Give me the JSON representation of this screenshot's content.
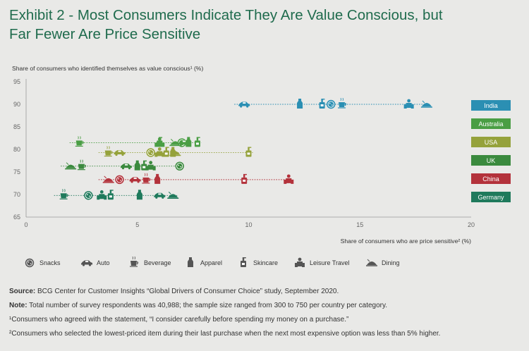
{
  "title_line1": "Exhibit 2 - Most Consumers Indicate They Are Value Conscious, but",
  "title_line2": "Far Fewer Are Price Sensitive",
  "chart_data": {
    "type": "scatter",
    "ylabel": "Share of consumers who identified themselves as value conscious¹ (%)",
    "xlabel": "Share of consumers who are price sensitive² (%)",
    "xlim": [
      0,
      20
    ],
    "ylim": [
      65,
      95
    ],
    "xticks": [
      0,
      5,
      10,
      15,
      20
    ],
    "yticks": [
      65,
      70,
      75,
      80,
      85,
      90,
      95
    ],
    "grid": false,
    "categories": [
      {
        "key": "snacks",
        "label": "Snacks",
        "icon": "snack-icon"
      },
      {
        "key": "auto",
        "label": "Auto",
        "icon": "car-icon"
      },
      {
        "key": "beverage",
        "label": "Beverage",
        "icon": "cup-icon"
      },
      {
        "key": "apparel",
        "label": "Apparel",
        "icon": "shirt-icon"
      },
      {
        "key": "skincare",
        "label": "Skincare",
        "icon": "bottle-icon"
      },
      {
        "key": "leisure",
        "label": "Leisure Travel",
        "icon": "traveler-icon"
      },
      {
        "key": "dining",
        "label": "Dining",
        "icon": "dining-icon"
      }
    ],
    "series": [
      {
        "name": "India",
        "color": "#2b8fb3",
        "y": 90,
        "points": [
          {
            "cat": "auto",
            "x": 9.8
          },
          {
            "cat": "apparel",
            "x": 12.3
          },
          {
            "cat": "skincare",
            "x": 13.3
          },
          {
            "cat": "snacks",
            "x": 13.7
          },
          {
            "cat": "beverage",
            "x": 14.2
          },
          {
            "cat": "leisure",
            "x": 17.2
          },
          {
            "cat": "dining",
            "x": 18.0
          }
        ]
      },
      {
        "name": "Australia",
        "color": "#4a9e44",
        "y": 81.5,
        "points": [
          {
            "cat": "beverage",
            "x": 2.4
          },
          {
            "cat": "skincare",
            "x": 6.0
          },
          {
            "cat": "leisure",
            "x": 6.0
          },
          {
            "cat": "dining",
            "x": 6.7
          },
          {
            "cat": "snacks",
            "x": 7.0
          },
          {
            "cat": "auto",
            "x": 7.1
          },
          {
            "cat": "apparel",
            "x": 7.3
          },
          {
            "cat": "skincare",
            "x": 7.7
          }
        ]
      },
      {
        "name": "USA",
        "color": "#95a23b",
        "y": 79.3,
        "points": [
          {
            "cat": "beverage",
            "x": 3.7
          },
          {
            "cat": "auto",
            "x": 4.2
          },
          {
            "cat": "snacks",
            "x": 5.6
          },
          {
            "cat": "leisure",
            "x": 6.0
          },
          {
            "cat": "skincare",
            "x": 6.3
          },
          {
            "cat": "apparel",
            "x": 6.6
          },
          {
            "cat": "dining",
            "x": 6.7
          },
          {
            "cat": "skincare",
            "x": 10.0
          }
        ]
      },
      {
        "name": "UK",
        "color": "#3b8a3e",
        "y": 76.3,
        "points": [
          {
            "cat": "dining",
            "x": 2.0
          },
          {
            "cat": "beverage",
            "x": 2.5
          },
          {
            "cat": "auto",
            "x": 4.5
          },
          {
            "cat": "apparel",
            "x": 5.0
          },
          {
            "cat": "skincare",
            "x": 5.3
          },
          {
            "cat": "leisure",
            "x": 5.6
          },
          {
            "cat": "snacks",
            "x": 6.9
          }
        ]
      },
      {
        "name": "China",
        "color": "#b3323b",
        "y": 73.3,
        "points": [
          {
            "cat": "dining",
            "x": 3.7
          },
          {
            "cat": "snacks",
            "x": 4.2
          },
          {
            "cat": "auto",
            "x": 4.9
          },
          {
            "cat": "beverage",
            "x": 5.4
          },
          {
            "cat": "apparel",
            "x": 5.9
          },
          {
            "cat": "skincare",
            "x": 9.8
          },
          {
            "cat": "leisure",
            "x": 11.8
          }
        ]
      },
      {
        "name": "Germany",
        "color": "#1f7a5c",
        "y": 69.8,
        "points": [
          {
            "cat": "beverage",
            "x": 1.7
          },
          {
            "cat": "snacks",
            "x": 2.8
          },
          {
            "cat": "leisure",
            "x": 3.4
          },
          {
            "cat": "skincare",
            "x": 3.8
          },
          {
            "cat": "apparel",
            "x": 5.1
          },
          {
            "cat": "auto",
            "x": 6.0
          },
          {
            "cat": "dining",
            "x": 6.6
          }
        ]
      }
    ]
  },
  "notes": {
    "source_label": "Source:",
    "source_text": " BCG Center for Customer Insights “Global Drivers of Consumer Choice” study, September 2020.",
    "note_label": "Note:",
    "note_text": " Total number of survey respondents was 40,988; the sample size ranged from 300 to 750 per country per category.",
    "footnote1": "¹Consumers who agreed with the statement, “I consider carefully before spending my money on a purchase.”",
    "footnote2": "²Consumers who selected the lowest-priced item during their last purchase when the next most expensive option was less than 5% higher."
  }
}
